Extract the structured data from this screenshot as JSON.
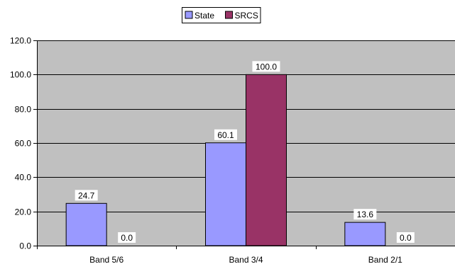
{
  "chart_data": {
    "type": "bar",
    "categories": [
      "Band 5/6",
      "Band 3/4",
      "Band 2/1"
    ],
    "series": [
      {
        "name": "State",
        "values": [
          24.7,
          60.1,
          13.6
        ],
        "color": "#9999ff"
      },
      {
        "name": "SRCS",
        "values": [
          0.0,
          100.0,
          0.0
        ],
        "color": "#993366"
      }
    ],
    "data_labels": [
      [
        "24.7",
        "60.1",
        "13.6"
      ],
      [
        "0.0",
        "100.0",
        "0.0"
      ]
    ],
    "ylim": [
      0,
      120
    ],
    "yticks": [
      0,
      20,
      40,
      60,
      80,
      100,
      120
    ],
    "ytick_labels": [
      "0.0",
      "20.0",
      "40.0",
      "60.0",
      "80.0",
      "100.0",
      "120.0"
    ],
    "title": "",
    "xlabel": "",
    "ylabel": "",
    "grid": true,
    "legend_position": "top-center",
    "plot_background": "#c0c0c0",
    "gridline_color": "#000000"
  }
}
